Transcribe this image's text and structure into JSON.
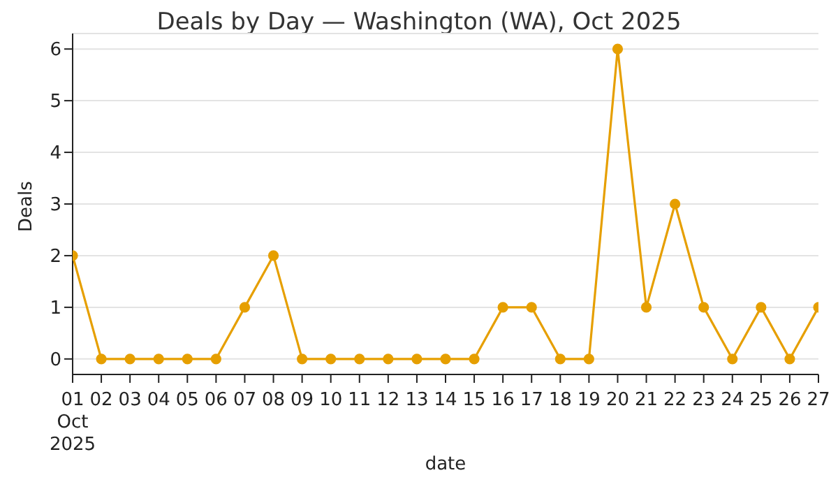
{
  "chart_data": {
    "type": "line",
    "title": "Deals by Day — Washington (WA), Oct 2025",
    "xlabel": "date",
    "ylabel": "Deals",
    "x": [
      "2025-10-01",
      "2025-10-02",
      "2025-10-03",
      "2025-10-04",
      "2025-10-05",
      "2025-10-06",
      "2025-10-07",
      "2025-10-08",
      "2025-10-09",
      "2025-10-10",
      "2025-10-11",
      "2025-10-12",
      "2025-10-13",
      "2025-10-14",
      "2025-10-15",
      "2025-10-16",
      "2025-10-17",
      "2025-10-18",
      "2025-10-19",
      "2025-10-20",
      "2025-10-21",
      "2025-10-22",
      "2025-10-23",
      "2025-10-24",
      "2025-10-25",
      "2025-10-26",
      "2025-10-27"
    ],
    "series": [
      {
        "color": "#e69f00",
        "values": [
          2,
          0,
          0,
          0,
          0,
          0,
          1,
          2,
          0,
          0,
          0,
          0,
          0,
          0,
          0,
          1,
          1,
          0,
          0,
          6,
          1,
          3,
          1,
          0,
          1,
          0,
          1
        ]
      }
    ],
    "xlim": [
      "2025-10-01",
      "2025-10-27"
    ],
    "xticks": [
      {
        "value": "2025-10-01",
        "label": "01\nOct\n2025"
      },
      {
        "value": "2025-10-02",
        "label": "02"
      },
      {
        "value": "2025-10-03",
        "label": "03"
      },
      {
        "value": "2025-10-04",
        "label": "04"
      },
      {
        "value": "2025-10-05",
        "label": "05"
      },
      {
        "value": "2025-10-06",
        "label": "06"
      },
      {
        "value": "2025-10-07",
        "label": "07"
      },
      {
        "value": "2025-10-08",
        "label": "08"
      },
      {
        "value": "2025-10-09",
        "label": "09"
      },
      {
        "value": "2025-10-10",
        "label": "10"
      },
      {
        "value": "2025-10-11",
        "label": "11"
      },
      {
        "value": "2025-10-12",
        "label": "12"
      },
      {
        "value": "2025-10-13",
        "label": "13"
      },
      {
        "value": "2025-10-14",
        "label": "14"
      },
      {
        "value": "2025-10-15",
        "label": "15"
      },
      {
        "value": "2025-10-16",
        "label": "16"
      },
      {
        "value": "2025-10-17",
        "label": "17"
      },
      {
        "value": "2025-10-18",
        "label": "18"
      },
      {
        "value": "2025-10-19",
        "label": "19"
      },
      {
        "value": "2025-10-20",
        "label": "20"
      },
      {
        "value": "2025-10-21",
        "label": "21"
      },
      {
        "value": "2025-10-22",
        "label": "22"
      },
      {
        "value": "2025-10-23",
        "label": "23"
      },
      {
        "value": "2025-10-24",
        "label": "24"
      },
      {
        "value": "2025-10-25",
        "label": "25"
      },
      {
        "value": "2025-10-26",
        "label": "26"
      },
      {
        "value": "2025-10-27",
        "label": "27"
      }
    ],
    "ylim": [
      -0.3,
      6.3
    ],
    "yticks": [
      0,
      1,
      2,
      3,
      4,
      5,
      6
    ],
    "grid": "y",
    "legend": false,
    "marker": "circle",
    "line_style": "solid"
  }
}
